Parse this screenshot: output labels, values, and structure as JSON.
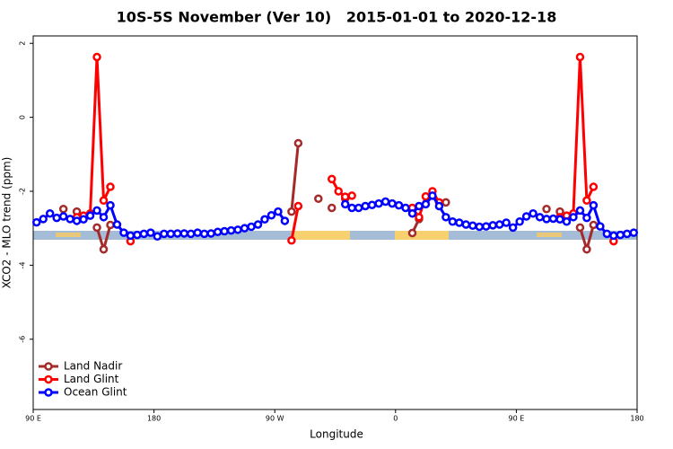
{
  "chart_data": {
    "type": "line",
    "title": "10S-5S November (Ver 10)   2015-01-01 to 2020-12-18",
    "xlabel": "Longitude",
    "ylabel": "XCO2 - MLO trend (ppm)",
    "xlim": [
      90,
      540
    ],
    "ylim": [
      -7.9,
      2.2
    ],
    "xticks": [
      {
        "value": 90,
        "label": "90 E"
      },
      180,
      {
        "value": 270,
        "label": "90 W"
      },
      {
        "value": 360,
        "label": "0"
      },
      {
        "value": 450,
        "label": "90 E"
      },
      {
        "value": 540,
        "label": "180"
      }
    ],
    "yticks": [
      2,
      0,
      -2,
      -4,
      -6
    ],
    "legend": "bottom-left",
    "series": [
      {
        "name": "Land Nadir",
        "color": "#a52a2a",
        "x": [
          112.5,
          117.5,
          122.5,
          127.5,
          137.5,
          142.5,
          147.5,
          152.5,
          282.5,
          287.5,
          292.5,
          302.5,
          307.5,
          312.5,
          317.5,
          322.5,
          327.5,
          372.5,
          377.5,
          382.5,
          397.5,
          402.5,
          472.5,
          477.5,
          482.5,
          487.5,
          497.5,
          502.5,
          507.5
        ],
        "values": [
          -2.48,
          null,
          -2.55,
          null,
          -2.98,
          -3.57,
          -2.91,
          null,
          -2.55,
          -0.7,
          null,
          -2.2,
          null,
          -2.45,
          null,
          -2.2,
          null,
          -3.13,
          -2.75,
          null,
          -2.3,
          null,
          -2.48,
          null,
          -2.55,
          null,
          -2.98,
          -3.57,
          -2.91
        ]
      },
      {
        "name": "Land Glint",
        "color": "#ff0000",
        "x": [
          122.5,
          127.5,
          132.5,
          137.5,
          142.5,
          147.5,
          152.5,
          162.5,
          167.5,
          282.5,
          287.5,
          292.5,
          312.5,
          317.5,
          322.5,
          327.5,
          332.5,
          372.5,
          377.5,
          382.5,
          387.5,
          392.5,
          397.5,
          482.5,
          487.5,
          492.5,
          497.5,
          502.5,
          507.5,
          512.5,
          522.5
        ],
        "values": [
          -2.7,
          -2.66,
          -2.6,
          1.63,
          -2.25,
          -1.88,
          null,
          -3.35,
          null,
          -3.33,
          -2.4,
          null,
          -1.67,
          -2.0,
          -2.15,
          -2.12,
          null,
          -2.45,
          -2.7,
          -2.14,
          -2.0,
          -2.3,
          null,
          -2.7,
          -2.66,
          -2.6,
          1.63,
          -2.25,
          -1.88,
          null,
          -3.35
        ]
      },
      {
        "name": "Ocean Glint",
        "color": "#0000ff",
        "x": [
          92.5,
          97.5,
          102.5,
          107.5,
          112.5,
          117.5,
          122.5,
          127.5,
          132.5,
          137.5,
          142.5,
          147.5,
          152.5,
          157.5,
          162.5,
          167.5,
          172.5,
          177.5,
          182.5,
          187.5,
          192.5,
          197.5,
          202.5,
          207.5,
          212.5,
          217.5,
          222.5,
          227.5,
          232.5,
          237.5,
          242.5,
          247.5,
          252.5,
          257.5,
          262.5,
          267.5,
          272.5,
          277.5,
          282.5,
          322.5,
          327.5,
          332.5,
          337.5,
          342.5,
          347.5,
          352.5,
          357.5,
          362.5,
          367.5,
          372.5,
          377.5,
          382.5,
          387.5,
          392.5,
          397.5,
          402.5,
          407.5,
          412.5,
          417.5,
          422.5,
          427.5,
          432.5,
          437.5,
          442.5,
          447.5,
          452.5,
          457.5,
          462.5,
          467.5,
          472.5,
          477.5,
          482.5,
          487.5,
          492.5,
          497.5,
          502.5,
          507.5,
          512.5,
          517.5,
          522.5,
          527.5,
          532.5,
          537.5
        ],
        "values": [
          -2.84,
          -2.75,
          -2.6,
          -2.72,
          -2.68,
          -2.75,
          -2.8,
          -2.76,
          -2.66,
          -2.52,
          -2.7,
          -2.38,
          -2.9,
          -3.12,
          -3.2,
          -3.18,
          -3.15,
          -3.12,
          -3.22,
          -3.15,
          -3.15,
          -3.14,
          -3.14,
          -3.15,
          -3.12,
          -3.15,
          -3.14,
          -3.1,
          -3.08,
          -3.06,
          -3.04,
          -3.0,
          -2.96,
          -2.9,
          -2.76,
          -2.65,
          -2.55,
          -2.8,
          null,
          -2.35,
          -2.45,
          -2.45,
          -2.4,
          -2.37,
          -2.33,
          -2.28,
          -2.33,
          -2.38,
          -2.45,
          -2.6,
          -2.4,
          -2.35,
          -2.12,
          -2.4,
          -2.7,
          -2.82,
          -2.85,
          -2.9,
          -2.93,
          -2.96,
          -2.95,
          -2.92,
          -2.9,
          -2.85,
          -2.98,
          -2.82,
          -2.68,
          -2.6,
          -2.7,
          -2.75,
          -2.74,
          -2.76,
          -2.82,
          -2.7,
          -2.52,
          -2.72,
          -2.38,
          -2.95,
          -3.15,
          -3.2,
          -3.18,
          -3.15,
          -3.12
        ]
      }
    ]
  }
}
